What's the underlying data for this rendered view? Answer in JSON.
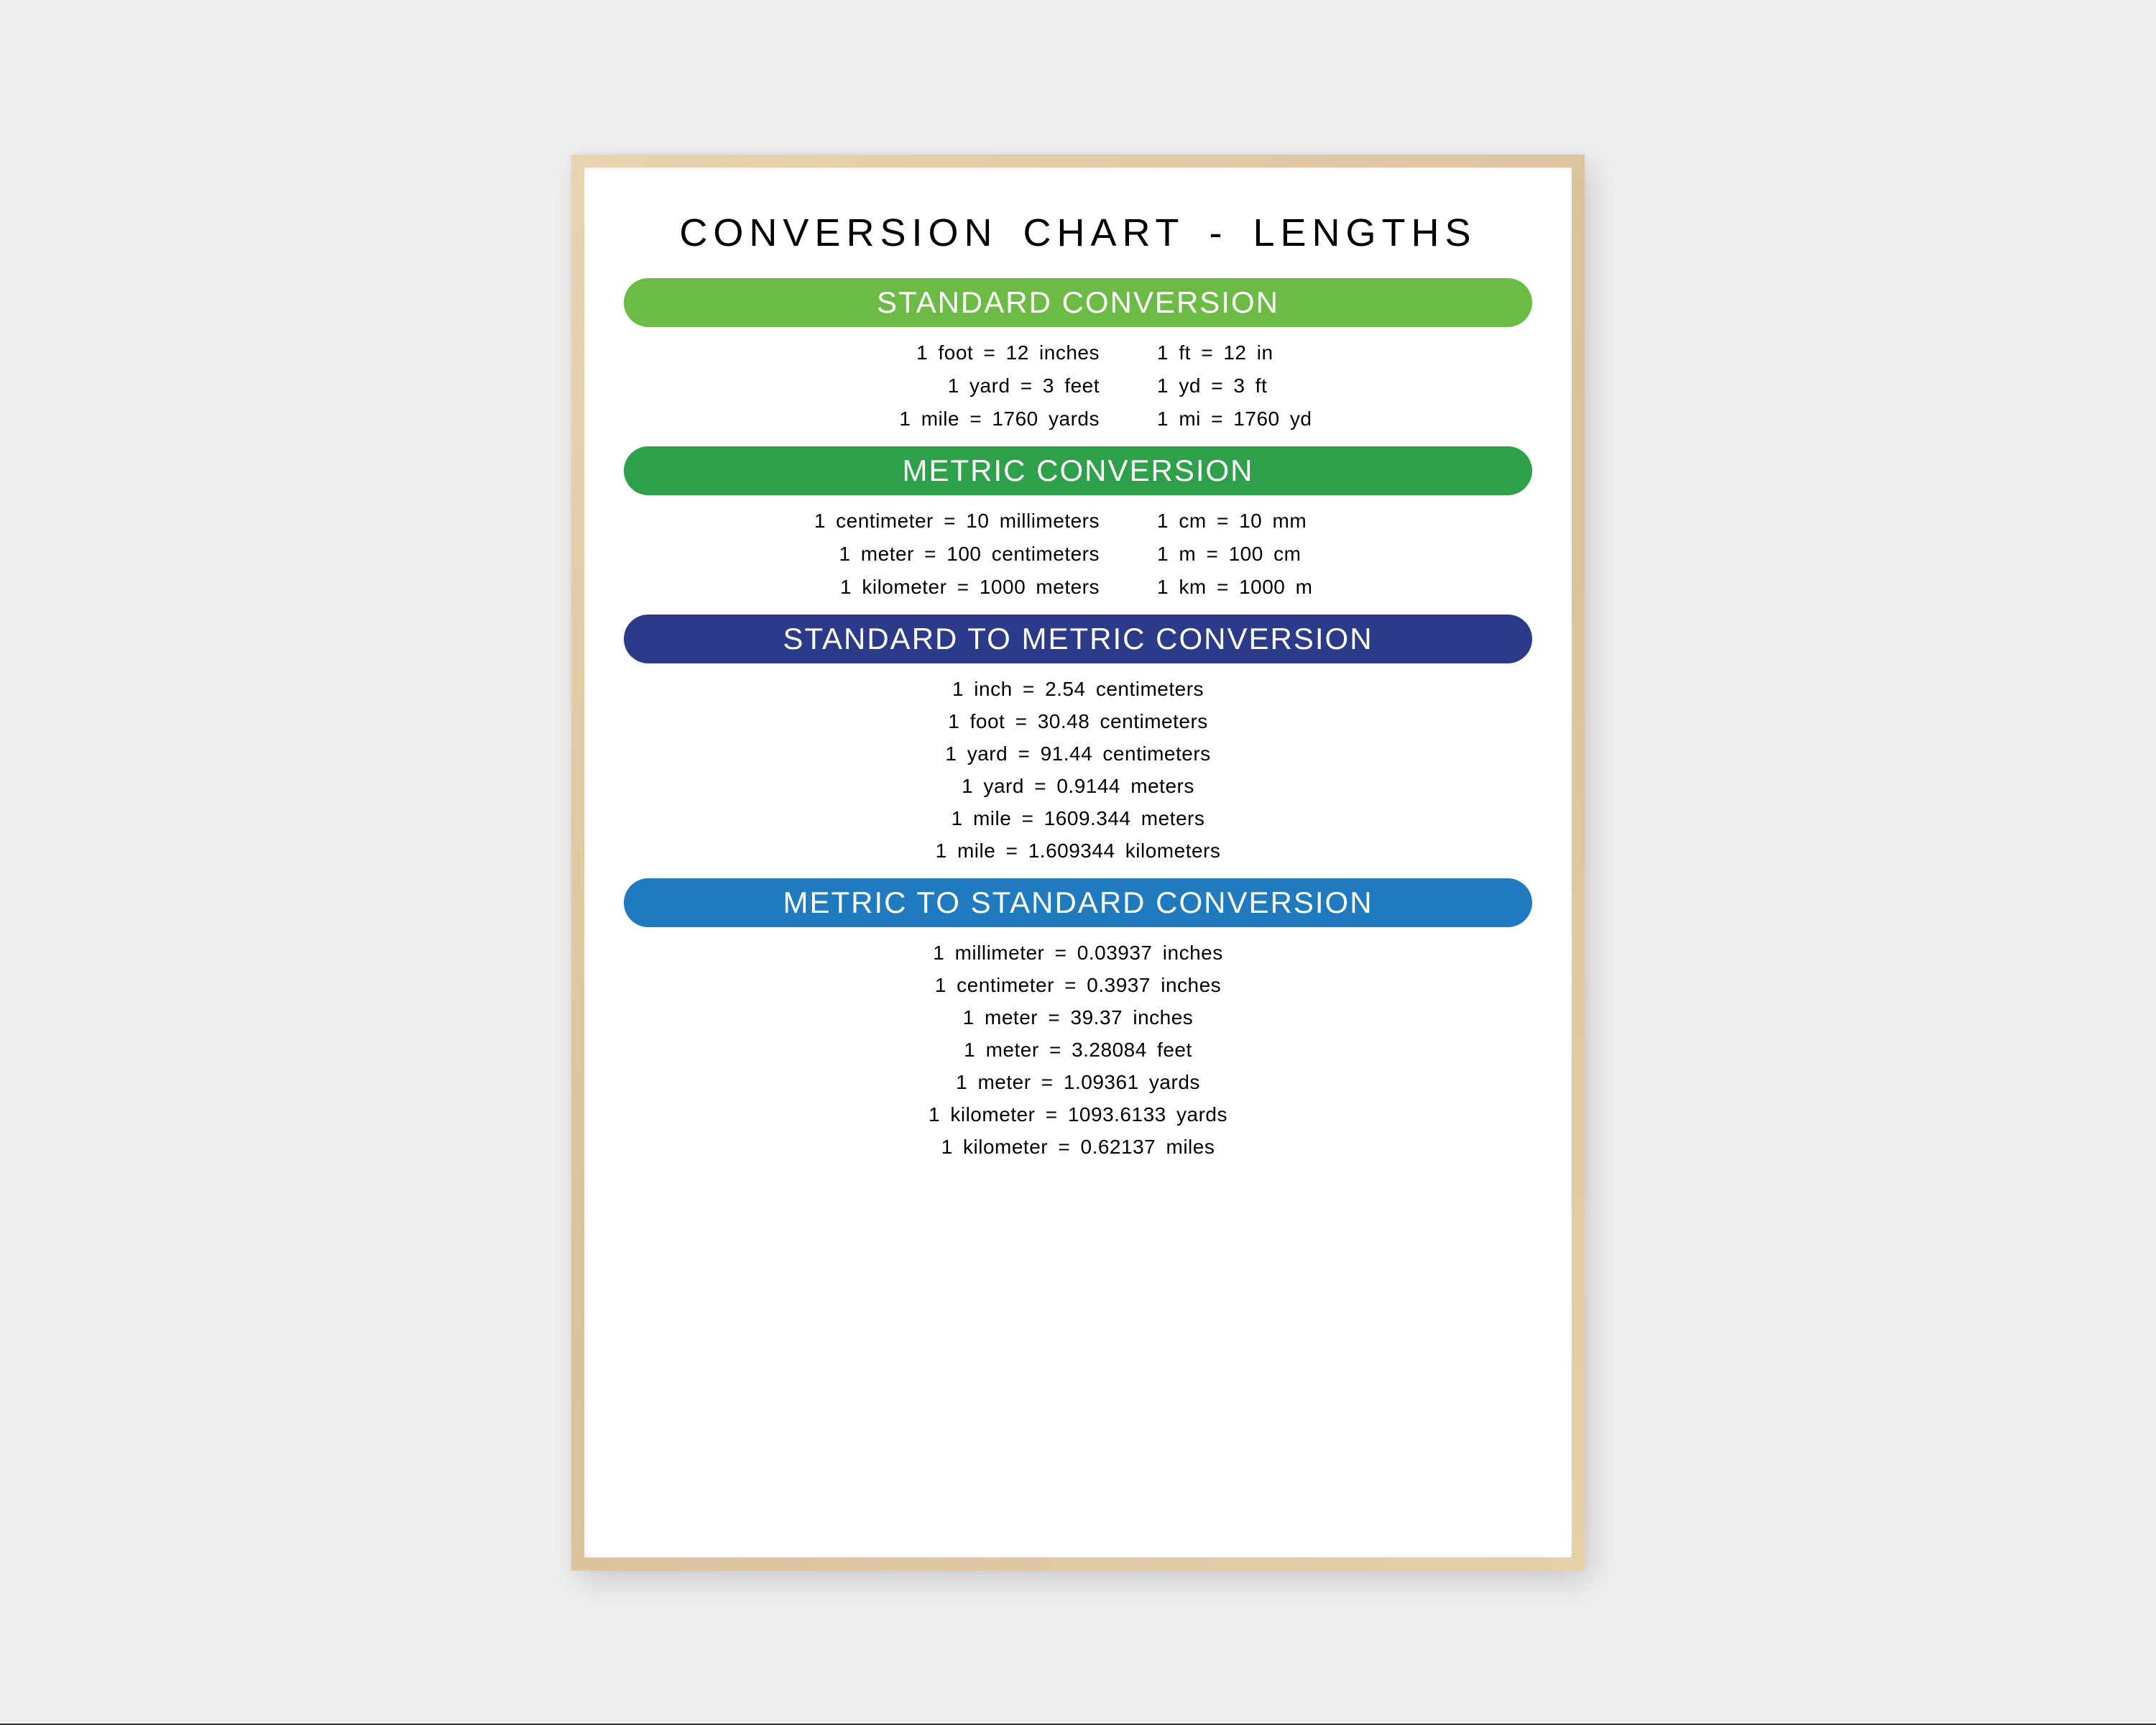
{
  "background_color": "#efefef",
  "poster_background": "#ffffff",
  "frame_color": "#e0cba5",
  "title": "CONVERSION  CHART  -  LENGTHS",
  "title_fontsize": 54,
  "title_color": "#000000",
  "sections": [
    {
      "id": "standard",
      "header": "STANDARD CONVERSION",
      "header_bg": "#6cbb45",
      "layout": "two-col",
      "left": [
        "1  foot  =  12  inches",
        "1  yard  =  3  feet",
        "1  mile  =  1760  yards"
      ],
      "right": [
        "1  ft  =  12  in",
        "1  yd  =  3  ft",
        "1  mi  =  1760  yd"
      ]
    },
    {
      "id": "metric",
      "header": "METRIC CONVERSION",
      "header_bg": "#2fa04a",
      "layout": "two-col",
      "left": [
        "1  centimeter  =  10  millimeters",
        "1  meter  =  100  centimeters",
        "1  kilometer  =  1000  meters"
      ],
      "right": [
        "1  cm  =  10  mm",
        "1  m  =  100  cm",
        "1  km  =  1000  m"
      ]
    },
    {
      "id": "std-to-metric",
      "header": "STANDARD TO METRIC CONVERSION",
      "header_bg": "#2c3a8a",
      "layout": "single-col",
      "lines": [
        "1  inch  =  2.54  centimeters",
        "1  foot  =  30.48  centimeters",
        "1  yard  =  91.44  centimeters",
        "1  yard  =  0.9144  meters",
        "1  mile  =  1609.344  meters",
        "1  mile  =  1.609344  kilometers"
      ]
    },
    {
      "id": "metric-to-std",
      "header": "METRIC TO STANDARD CONVERSION",
      "header_bg": "#1f7abf",
      "layout": "single-col",
      "lines": [
        "1  millimeter  =  0.03937  inches",
        "1  centimeter  =  0.3937  inches",
        "1  meter  =  39.37  inches",
        "1  meter  =  3.28084  feet",
        "1  meter  =  1.09361  yards",
        "1  kilometer  =  1093.6133  yards",
        "1  kilometer  =  0.62137  miles"
      ]
    }
  ],
  "line_fontsize": 28,
  "line_color": "#000000",
  "header_fontsize": 42,
  "header_text_color": "#ffffff"
}
